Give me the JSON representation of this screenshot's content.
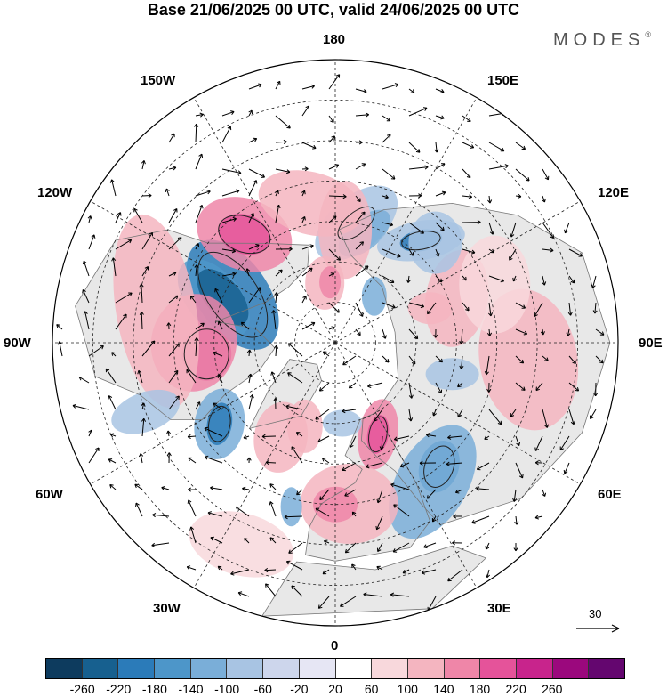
{
  "title": "Base 21/06/2025 00 UTC, valid 24/06/2025 00 UTC",
  "brand": "MODES",
  "brand_mark": "®",
  "longitude_labels": {
    "top": "180",
    "bottom": "0",
    "left": "90W",
    "right": "90E",
    "upper_left_1": "150W",
    "upper_left_2": "120W",
    "lower_left_1": "60W",
    "lower_left_2": "30W",
    "upper_right_1": "150E",
    "upper_right_2": "120E",
    "lower_right_1": "60E",
    "lower_right_2": "30E"
  },
  "reference_vector": "30",
  "colorbar": {
    "colors": [
      "#0d3b5e",
      "#17608f",
      "#2b7bb9",
      "#4d96c9",
      "#7aaed8",
      "#a8c4e3",
      "#cdd6ec",
      "#e6e6f4",
      "#ffffff",
      "#f8d8dc",
      "#f4b5c0",
      "#ef86a8",
      "#e5539a",
      "#c8248c",
      "#9b087d",
      "#64066f"
    ],
    "ticks": [
      "-260",
      "-220",
      "-180",
      "-140",
      "-100",
      "-60",
      "-20",
      "20",
      "60",
      "100",
      "140",
      "180",
      "220",
      "260"
    ]
  },
  "anomaly_blobs": [
    {
      "color": "#2b7bb9",
      "rx": 40,
      "ry": 70,
      "rot": -35,
      "lat": 62,
      "lon": -115
    },
    {
      "color": "#4d96c9",
      "rx": 30,
      "ry": 52,
      "rot": -40,
      "lat": 58,
      "lon": -110
    },
    {
      "color": "#17608f",
      "rx": 20,
      "ry": 38,
      "rot": -40,
      "lat": 60,
      "lon": -112
    },
    {
      "color": "#ef86a8",
      "rx": 55,
      "ry": 40,
      "rot": 20,
      "lat": 55,
      "lon": -140
    },
    {
      "color": "#e5539a",
      "rx": 30,
      "ry": 22,
      "rot": 20,
      "lat": 55,
      "lon": -140
    },
    {
      "color": "#c8248c",
      "rx": 28,
      "ry": 30,
      "rot": 0,
      "lat": 58,
      "lon": -85
    },
    {
      "color": "#ef86a8",
      "rx": 48,
      "ry": 55,
      "rot": 10,
      "lat": 55,
      "lon": -90
    },
    {
      "color": "#f4b5c0",
      "rx": 45,
      "ry": 110,
      "rot": -10,
      "lat": 45,
      "lon": -100
    },
    {
      "color": "#7aaed8",
      "rx": 28,
      "ry": 40,
      "rot": 10,
      "lat": 55,
      "lon": -55
    },
    {
      "color": "#2b7bb9",
      "rx": 14,
      "ry": 24,
      "rot": 10,
      "lat": 55,
      "lon": -55
    },
    {
      "color": "#a8c4e3",
      "rx": 40,
      "ry": 22,
      "rot": -20,
      "lat": 40,
      "lon": -70
    },
    {
      "color": "#f4b5c0",
      "rx": 30,
      "ry": 40,
      "rot": 10,
      "lat": 63,
      "lon": -30
    },
    {
      "color": "#a8c4e3",
      "rx": 55,
      "ry": 30,
      "rot": -40,
      "lat": 60,
      "lon": 170
    },
    {
      "color": "#7aaed8",
      "rx": 35,
      "ry": 18,
      "rot": -40,
      "lat": 62,
      "lon": 165
    },
    {
      "color": "#f4b5c0",
      "rx": 60,
      "ry": 35,
      "rot": 15,
      "lat": 55,
      "lon": -170
    },
    {
      "color": "#a8c4e3",
      "rx": 50,
      "ry": 22,
      "rot": -10,
      "lat": 57,
      "lon": 140
    },
    {
      "color": "#2b7bb9",
      "rx": 24,
      "ry": 12,
      "rot": -10,
      "lat": 57,
      "lon": 140
    },
    {
      "color": "#f4b5c0",
      "rx": 30,
      "ry": 55,
      "rot": 0,
      "lat": 62,
      "lon": 175
    },
    {
      "color": "#f4b5c0",
      "rx": 35,
      "ry": 55,
      "rot": 10,
      "lat": 58,
      "lon": 110
    },
    {
      "color": "#f4b5c0",
      "rx": 55,
      "ry": 80,
      "rot": -10,
      "lat": 42,
      "lon": 85
    },
    {
      "color": "#f8d8dc",
      "rx": 40,
      "ry": 55,
      "rot": 0,
      "lat": 48,
      "lon": 110
    },
    {
      "color": "#a8c4e3",
      "rx": 30,
      "ry": 18,
      "rot": 0,
      "lat": 60,
      "lon": 75
    },
    {
      "color": "#2b7bb9",
      "rx": 22,
      "ry": 30,
      "rot": 20,
      "lat": 50,
      "lon": 40
    },
    {
      "color": "#7aaed8",
      "rx": 40,
      "ry": 70,
      "rot": 30,
      "lat": 48,
      "lon": 35
    },
    {
      "color": "#ef86a8",
      "rx": 22,
      "ry": 40,
      "rot": 10,
      "lat": 65,
      "lon": 25
    },
    {
      "color": "#e5539a",
      "rx": 12,
      "ry": 22,
      "rot": 10,
      "lat": 65,
      "lon": 25
    },
    {
      "color": "#a8c4e3",
      "rx": 22,
      "ry": 15,
      "rot": 0,
      "lat": 70,
      "lon": 5
    },
    {
      "color": "#f4b5c0",
      "rx": 55,
      "ry": 45,
      "rot": 0,
      "lat": 50,
      "lon": 5
    },
    {
      "color": "#ef86a8",
      "rx": 25,
      "ry": 20,
      "rot": 0,
      "lat": 50,
      "lon": 0
    },
    {
      "color": "#7aaed8",
      "rx": 12,
      "ry": 22,
      "rot": 0,
      "lat": 48,
      "lon": -15
    },
    {
      "color": "#f8d8dc",
      "rx": 60,
      "ry": 35,
      "rot": 15,
      "lat": 35,
      "lon": -25
    },
    {
      "color": "#a8c4e3",
      "rx": 30,
      "ry": 35,
      "rot": 0,
      "lat": 55,
      "lon": 135
    },
    {
      "color": "#f4b5c0",
      "rx": 22,
      "ry": 30,
      "rot": 0,
      "lat": 75,
      "lon": -170
    },
    {
      "color": "#ef86a8",
      "rx": 12,
      "ry": 18,
      "rot": 0,
      "lat": 75,
      "lon": -175
    },
    {
      "color": "#7aaed8",
      "rx": 14,
      "ry": 22,
      "rot": 0,
      "lat": 75,
      "lon": 140
    },
    {
      "color": "#f4b5c0",
      "rx": 20,
      "ry": 30,
      "rot": 0,
      "lat": 68,
      "lon": -20
    },
    {
      "color": "#f4b5c0",
      "rx": 25,
      "ry": 18,
      "rot": 0,
      "lat": 65,
      "lon": 110
    }
  ]
}
